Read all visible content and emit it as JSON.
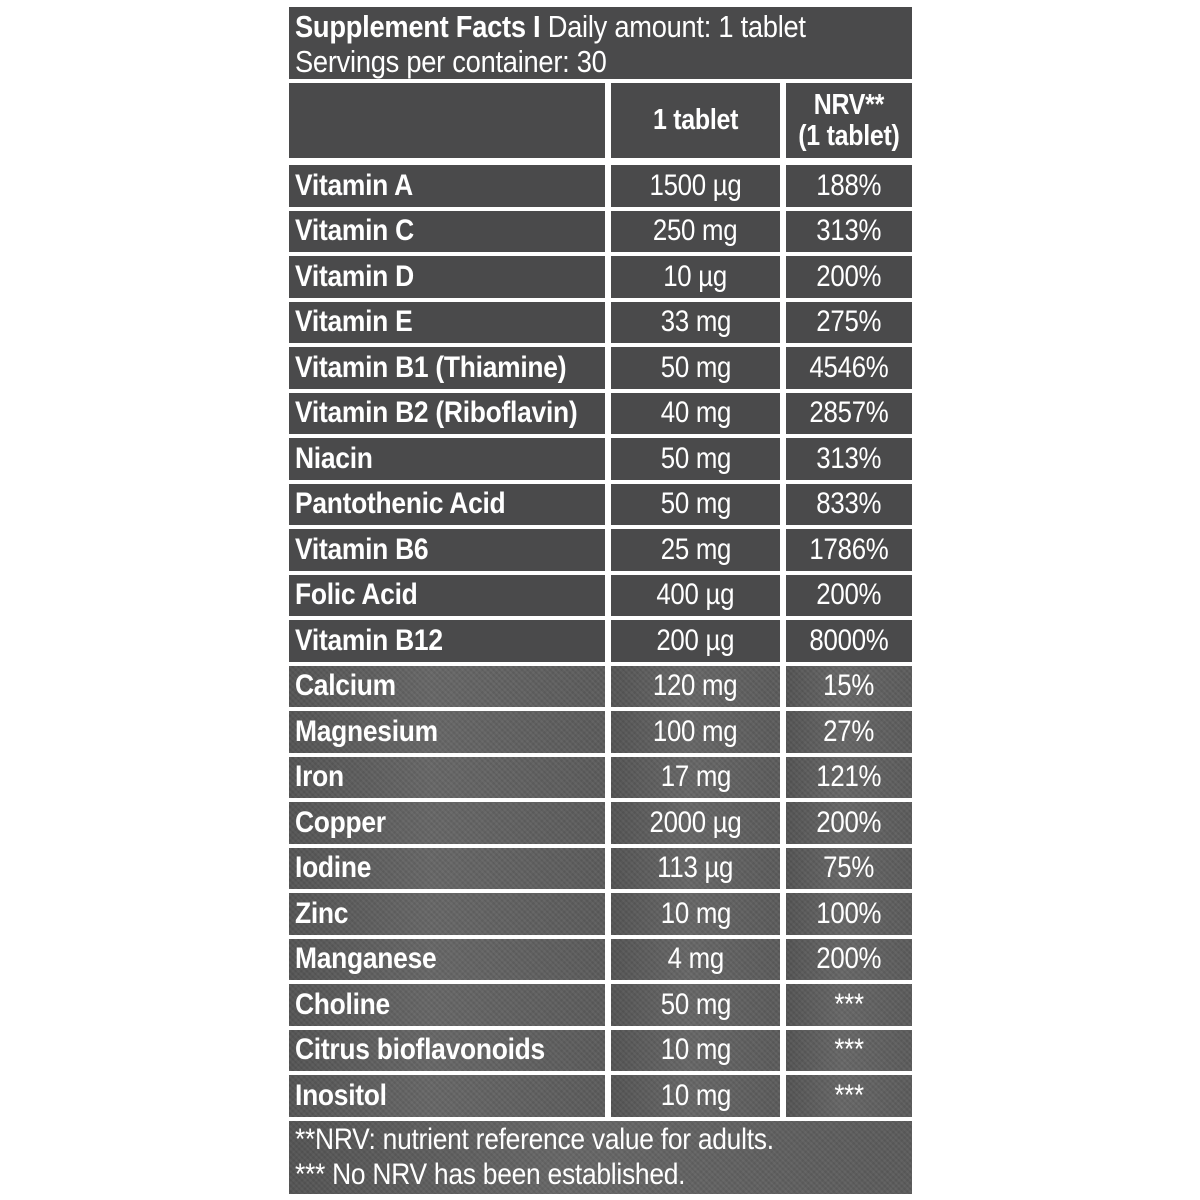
{
  "title": {
    "bold": "Supplement Facts I",
    "daily": "Daily amount: 1 tablet",
    "servings": "Servings per container: 30"
  },
  "columns": {
    "amount": "1 tablet",
    "nrv_line1": "NRV**",
    "nrv_line2": "(1 tablet)"
  },
  "rows": [
    {
      "label": "Vitamin A",
      "amount": "1500 µg",
      "nrv": "188%",
      "section": "vitamins"
    },
    {
      "label": "Vitamin C",
      "amount": "250 mg",
      "nrv": "313%",
      "section": "vitamins"
    },
    {
      "label": "Vitamin D",
      "amount": "10 µg",
      "nrv": "200%",
      "section": "vitamins"
    },
    {
      "label": "Vitamin E",
      "amount": "33 mg",
      "nrv": "275%",
      "section": "vitamins"
    },
    {
      "label": "Vitamin B1 (Thiamine)",
      "amount": "50 mg",
      "nrv": "4546%",
      "section": "vitamins"
    },
    {
      "label": "Vitamin B2 (Riboflavin)",
      "amount": "40 mg",
      "nrv": "2857%",
      "section": "vitamins"
    },
    {
      "label": "Niacin",
      "amount": "50 mg",
      "nrv": "313%",
      "section": "vitamins"
    },
    {
      "label": "Pantothenic Acid",
      "amount": "50 mg",
      "nrv": "833%",
      "section": "vitamins"
    },
    {
      "label": "Vitamin B6",
      "amount": "25 mg",
      "nrv": "1786%",
      "section": "vitamins"
    },
    {
      "label": "Folic Acid",
      "amount": "400 µg",
      "nrv": "200%",
      "section": "vitamins"
    },
    {
      "label": "Vitamin B12",
      "amount": "200 µg",
      "nrv": "8000%",
      "section": "vitamins"
    },
    {
      "label": "Calcium",
      "amount": "120 mg",
      "nrv": "15%",
      "section": "minerals_and_others"
    },
    {
      "label": "Magnesium",
      "amount": "100 mg",
      "nrv": "27%",
      "section": "minerals_and_others"
    },
    {
      "label": "Iron",
      "amount": "17 mg",
      "nrv": "121%",
      "section": "minerals_and_others"
    },
    {
      "label": "Copper",
      "amount": "2000 µg",
      "nrv": "200%",
      "section": "minerals_and_others"
    },
    {
      "label": "Iodine",
      "amount": "113 µg",
      "nrv": "75%",
      "section": "minerals_and_others"
    },
    {
      "label": "Zinc",
      "amount": "10 mg",
      "nrv": "100%",
      "section": "minerals_and_others"
    },
    {
      "label": "Manganese",
      "amount": "4 mg",
      "nrv": "200%",
      "section": "minerals_and_others"
    },
    {
      "label": "Choline",
      "amount": "50 mg",
      "nrv": "***",
      "section": "minerals_and_others"
    },
    {
      "label": "Citrus bioflavonoids",
      "amount": "10 mg",
      "nrv": "***",
      "section": "minerals_and_others"
    },
    {
      "label": "Inositol",
      "amount": "10 mg",
      "nrv": "***",
      "section": "minerals_and_others"
    }
  ],
  "footnotes": [
    "**NRV: nutrient reference value for adults.",
    "*** No NRV has been established."
  ],
  "colors": {
    "panel_dark": "#4a4a4b",
    "panel_light": "#5e5e5e",
    "text": "#ffffff",
    "background": "#ffffff"
  }
}
